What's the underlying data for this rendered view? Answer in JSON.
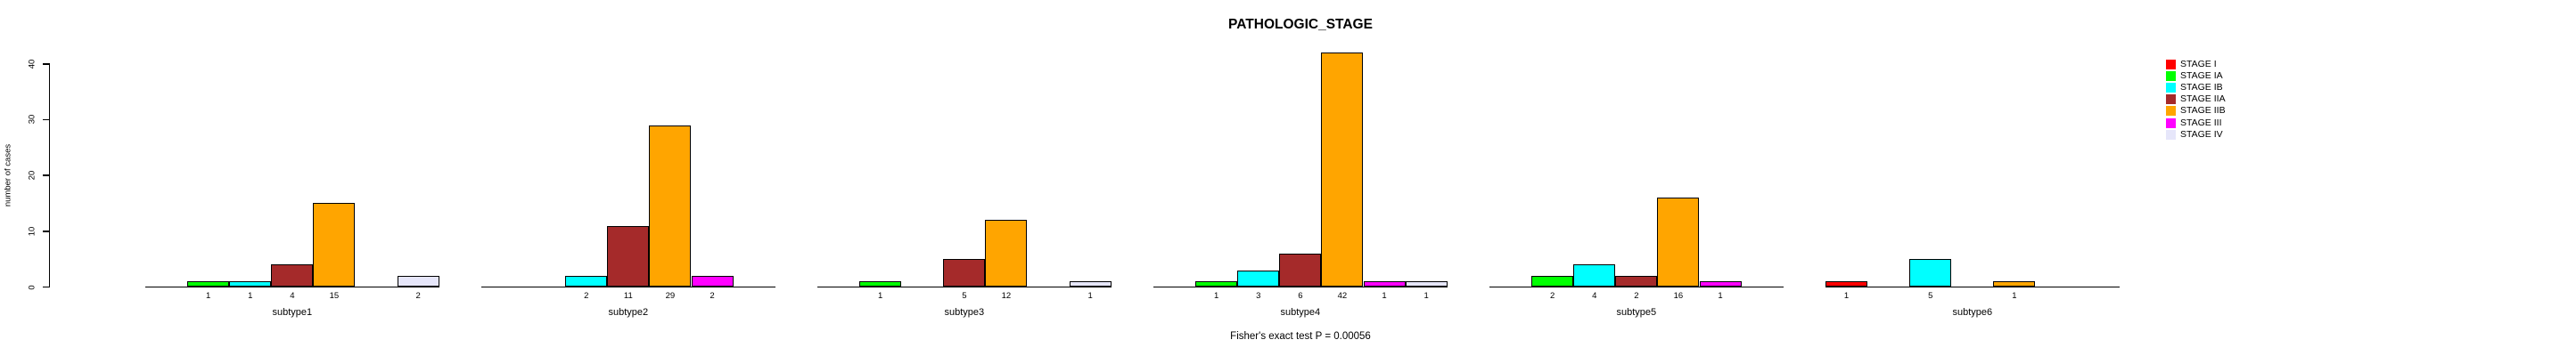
{
  "chart_data": {
    "type": "bar",
    "title": "PATHOLOGIC_STAGE",
    "xlabel": "",
    "ylabel": "number of cases",
    "ylim": [
      0,
      42
    ],
    "yticks": [
      0,
      10,
      20,
      30,
      40
    ],
    "grid": false,
    "legend_position": "right",
    "bar_value_labels": "shown under baseline for non-zero bars",
    "categories": [
      "subtype1",
      "subtype2",
      "subtype3",
      "subtype4",
      "subtype5",
      "subtype6"
    ],
    "series": [
      {
        "name": "STAGE I",
        "color": "#FF0000",
        "values": [
          0,
          0,
          0,
          0,
          0,
          1
        ]
      },
      {
        "name": "STAGE IA",
        "color": "#00FF00",
        "values": [
          1,
          0,
          1,
          1,
          2,
          0
        ]
      },
      {
        "name": "STAGE IB",
        "color": "#00FFFF",
        "values": [
          1,
          2,
          0,
          3,
          4,
          5
        ]
      },
      {
        "name": "STAGE IIA",
        "color": "#A52A2A",
        "values": [
          4,
          11,
          5,
          6,
          2,
          0
        ]
      },
      {
        "name": "STAGE IIB",
        "color": "#FFA500",
        "values": [
          15,
          29,
          12,
          42,
          16,
          1
        ]
      },
      {
        "name": "STAGE III",
        "color": "#FF00FF",
        "values": [
          0,
          2,
          0,
          1,
          1,
          0
        ]
      },
      {
        "name": "STAGE IV",
        "color": "#E6E6FA",
        "values": [
          2,
          0,
          1,
          1,
          0,
          0
        ]
      }
    ],
    "annotation": "Fisher's exact test P = 0.00056"
  }
}
